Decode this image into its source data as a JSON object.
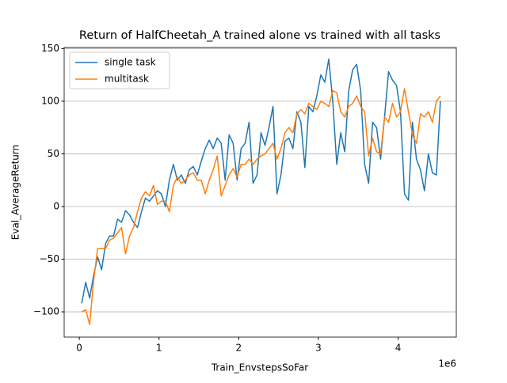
{
  "chart_data": {
    "type": "line",
    "title": "Return of HalfCheetah_A trained alone vs trained with all tasks",
    "x_label": "Train_EnvstepsSoFar",
    "y_label": "Eval_AverageReturn",
    "x_offset_label": "1e6",
    "x": [
      0.03,
      0.08,
      0.13,
      0.18,
      0.23,
      0.28,
      0.33,
      0.38,
      0.43,
      0.48,
      0.53,
      0.58,
      0.63,
      0.68,
      0.73,
      0.78,
      0.83,
      0.88,
      0.93,
      0.98,
      1.03,
      1.08,
      1.13,
      1.18,
      1.23,
      1.28,
      1.33,
      1.38,
      1.43,
      1.48,
      1.53,
      1.58,
      1.63,
      1.68,
      1.73,
      1.78,
      1.83,
      1.88,
      1.93,
      1.98,
      2.03,
      2.08,
      2.13,
      2.18,
      2.23,
      2.28,
      2.33,
      2.38,
      2.43,
      2.48,
      2.53,
      2.58,
      2.63,
      2.68,
      2.73,
      2.78,
      2.83,
      2.88,
      2.93,
      2.98,
      3.03,
      3.08,
      3.13,
      3.18,
      3.23,
      3.28,
      3.33,
      3.38,
      3.43,
      3.48,
      3.53,
      3.58,
      3.63,
      3.68,
      3.73,
      3.78,
      3.83,
      3.88,
      3.93,
      3.98,
      4.03,
      4.08,
      4.13,
      4.18,
      4.23,
      4.28,
      4.33,
      4.38,
      4.43,
      4.48,
      4.53
    ],
    "series": [
      {
        "name": "single task",
        "color": "#1f77b4",
        "values": [
          -92,
          -72,
          -87,
          -65,
          -48,
          -60,
          -35,
          -28,
          -28,
          -12,
          -15,
          -4,
          -8,
          -15,
          -20,
          -5,
          8,
          5,
          10,
          15,
          12,
          0,
          25,
          40,
          25,
          30,
          22,
          35,
          38,
          30,
          43,
          55,
          63,
          55,
          65,
          60,
          25,
          68,
          60,
          25,
          55,
          60,
          80,
          22,
          30,
          70,
          58,
          75,
          95,
          12,
          30,
          62,
          65,
          55,
          90,
          80,
          37,
          95,
          90,
          105,
          125,
          118,
          140,
          100,
          40,
          70,
          52,
          110,
          130,
          135,
          110,
          40,
          22,
          80,
          75,
          45,
          85,
          128,
          120,
          115,
          90,
          12,
          6,
          80,
          45,
          35,
          15,
          50,
          32,
          30,
          100
        ]
      },
      {
        "name": "multitask",
        "color": "#ff7f0e",
        "values": [
          -100,
          -98,
          -112,
          -70,
          -40,
          -40,
          -40,
          -32,
          -30,
          -25,
          -20,
          -45,
          -28,
          -20,
          -5,
          8,
          14,
          10,
          20,
          2,
          5,
          5,
          -5,
          20,
          28,
          22,
          25,
          30,
          32,
          25,
          25,
          12,
          25,
          35,
          48,
          10,
          20,
          30,
          36,
          28,
          40,
          40,
          45,
          40,
          45,
          48,
          50,
          55,
          60,
          45,
          55,
          70,
          75,
          70,
          88,
          92,
          88,
          98,
          95,
          92,
          100,
          98,
          95,
          110,
          108,
          90,
          85,
          95,
          98,
          105,
          95,
          90,
          48,
          65,
          52,
          50,
          85,
          80,
          98,
          85,
          90,
          112,
          90,
          68,
          60,
          88,
          85,
          90,
          80,
          100,
          105
        ]
      }
    ],
    "xlim": [
      -0.19,
      4.73
    ],
    "ylim": [
      -124,
      151
    ],
    "xticks": [
      0,
      1,
      2,
      3,
      4
    ],
    "yticks": [
      {
        "value": -100,
        "label": "−100"
      },
      {
        "value": -50,
        "label": "−50"
      },
      0,
      50,
      100,
      150
    ],
    "grid": "y",
    "legend": "upper-left"
  }
}
